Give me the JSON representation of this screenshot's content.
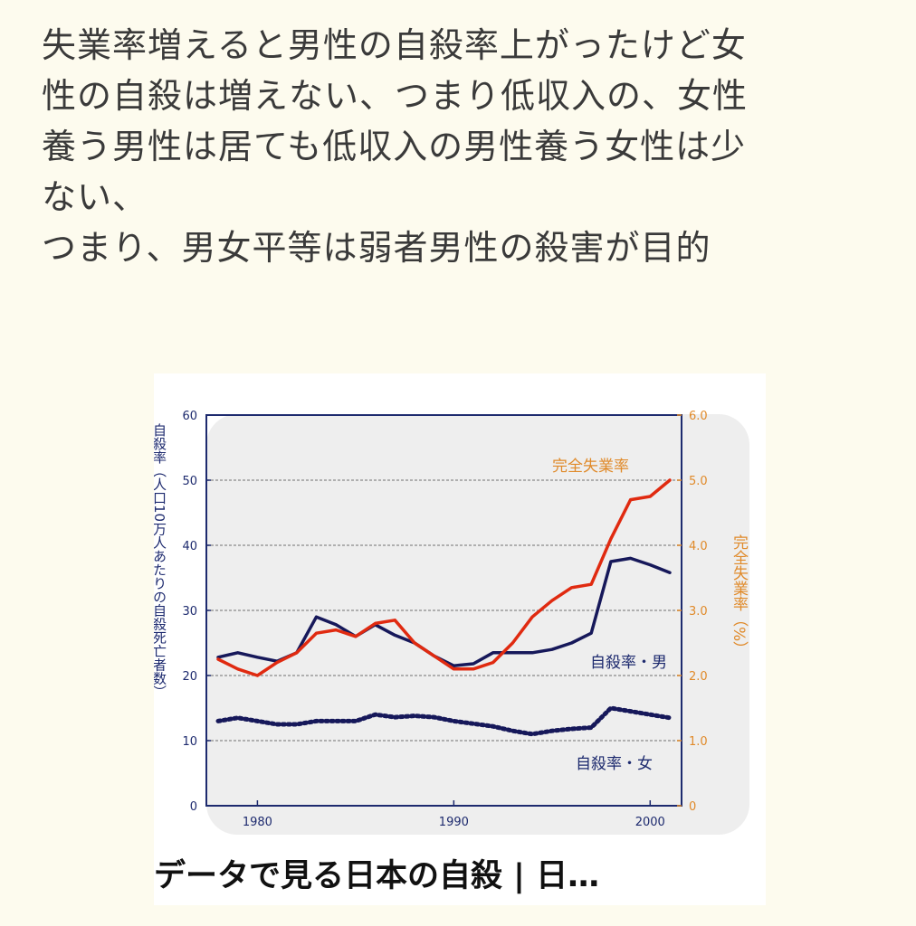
{
  "post": {
    "lines": [
      "失業率増えると男性の自殺率上がったけど女",
      "性の自殺は増えない、つまり低収入の、女性",
      "養う男性は居ても低収入の男性養う女性は少",
      "ない、",
      "つまり、男女平等は弱者男性の殺害が目的"
    ]
  },
  "image_caption": "データで見る日本の自殺 | 日…",
  "colors": {
    "background": "#fdfbee",
    "plot_bg": "#eeeeee",
    "male_series": "#16185a",
    "unemployment_series": "#e02a10",
    "left_axis": "#1d2a6e",
    "right_axis": "#e08a2a"
  },
  "chart_data": {
    "type": "line",
    "left_axis_label": "自殺率（人口10万人あたりの自殺死亡者数）",
    "right_axis_label": "完全失業率（%）",
    "left_ylim": [
      0,
      60
    ],
    "right_ylim": [
      0,
      6.0
    ],
    "left_ticks": [
      "0",
      "10",
      "20",
      "30",
      "40",
      "50",
      "60"
    ],
    "right_ticks": [
      "0",
      "1.0",
      "2.0",
      "3.0",
      "4.0",
      "5.0",
      "6.0"
    ],
    "x_ticks": [
      "1980",
      "1990",
      "2000"
    ],
    "x": [
      1978,
      1979,
      1980,
      1981,
      1982,
      1983,
      1984,
      1985,
      1986,
      1987,
      1988,
      1989,
      1990,
      1991,
      1992,
      1993,
      1994,
      1995,
      1996,
      1997,
      1998,
      1999,
      2000,
      2001
    ],
    "series": [
      {
        "name": "自殺率・男",
        "axis": "left",
        "style": "solid",
        "values": [
          22.8,
          23.5,
          22.8,
          22.2,
          23.5,
          29.0,
          27.8,
          26.0,
          27.8,
          26.2,
          25.0,
          23.0,
          21.5,
          21.8,
          23.5,
          23.5,
          23.5,
          24.0,
          25.0,
          26.5,
          37.5,
          38.0,
          37.0,
          35.8
        ]
      },
      {
        "name": "完全失業率",
        "axis": "right",
        "style": "solid",
        "values": [
          2.25,
          2.1,
          2.0,
          2.2,
          2.35,
          2.65,
          2.7,
          2.6,
          2.8,
          2.85,
          2.5,
          2.3,
          2.1,
          2.1,
          2.2,
          2.5,
          2.9,
          3.15,
          3.35,
          3.4,
          4.1,
          4.7,
          4.75,
          5.0
        ]
      },
      {
        "name": "自殺率・女",
        "axis": "left",
        "style": "dotted",
        "values": [
          13.0,
          13.5,
          13.0,
          12.5,
          12.5,
          13.0,
          13.0,
          13.0,
          14.0,
          13.6,
          13.8,
          13.6,
          13.0,
          12.6,
          12.2,
          11.5,
          11.0,
          11.5,
          11.8,
          12.0,
          15.0,
          14.5,
          14.0,
          13.5
        ]
      }
    ],
    "annotations": [
      "完全失業率",
      "自殺率・男",
      "自殺率・女"
    ],
    "grid": true
  }
}
